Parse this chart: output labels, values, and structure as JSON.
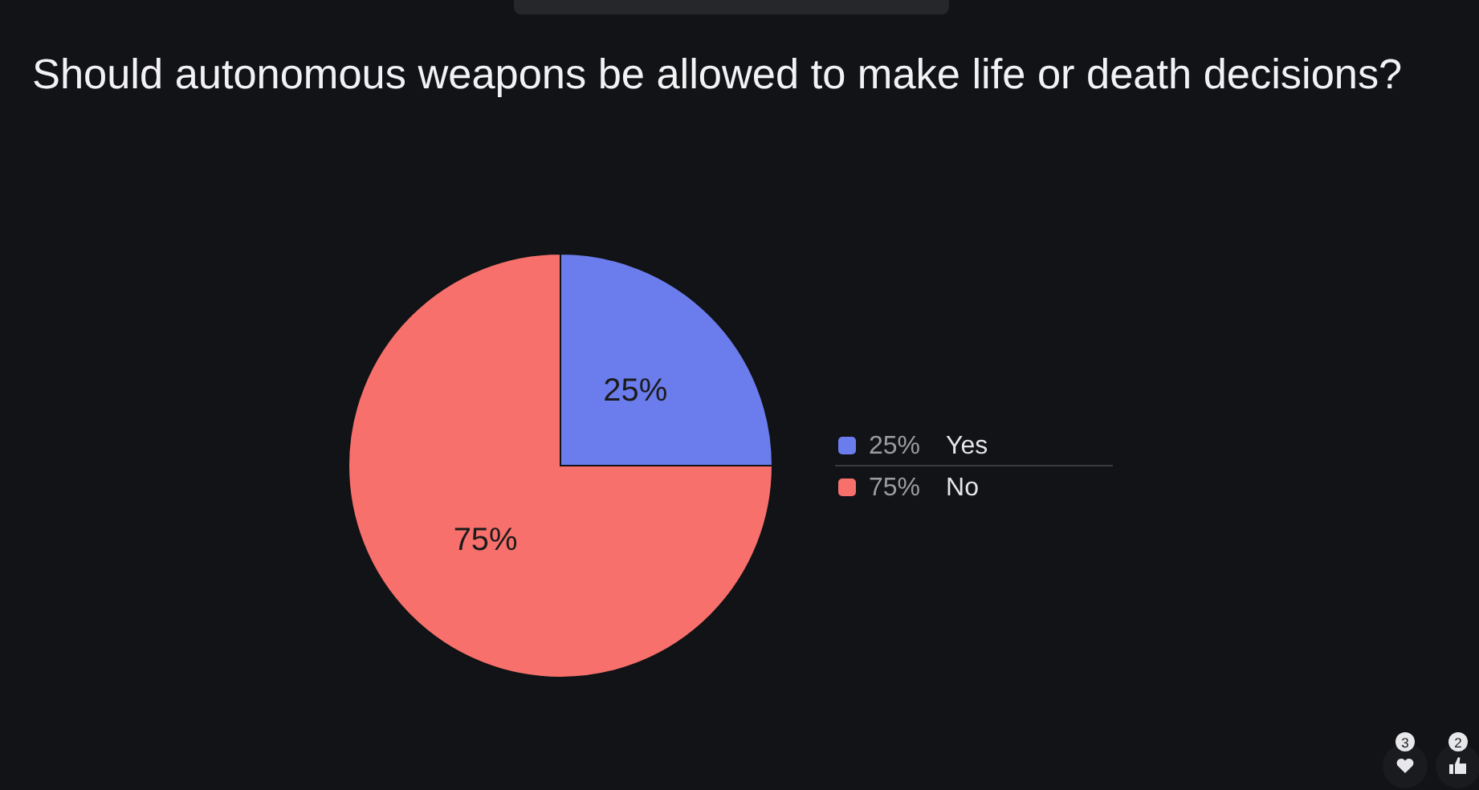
{
  "chart_data": {
    "type": "pie",
    "title": "Should autonomous weapons be allowed to make life or death decisions?",
    "categories": [
      "Yes",
      "No"
    ],
    "values": [
      25,
      75
    ],
    "colors": [
      "#6b7cec",
      "#f8706c"
    ],
    "value_labels": [
      "25%",
      "75%"
    ],
    "legend": "right",
    "annotations": [
      "3",
      "2"
    ]
  }
}
